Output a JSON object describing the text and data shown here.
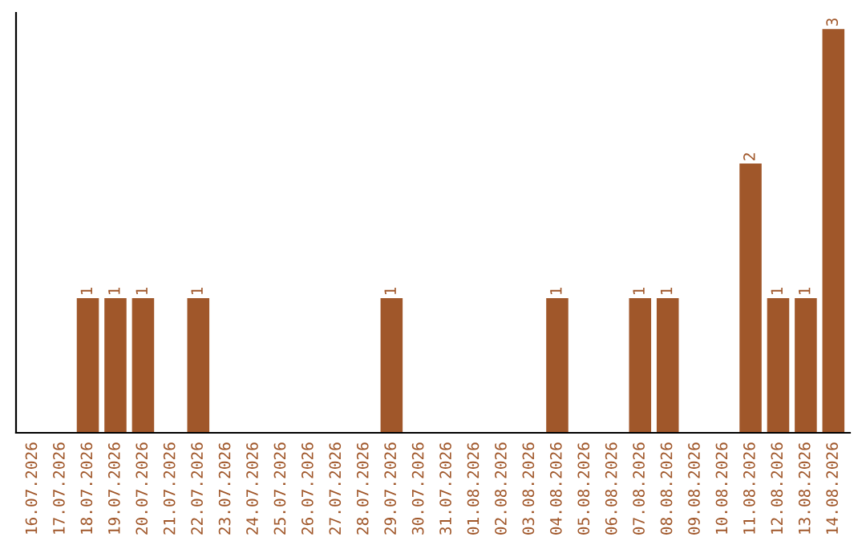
{
  "chart_data": {
    "type": "bar",
    "categories": [
      "16.07.2026",
      "17.07.2026",
      "18.07.2026",
      "19.07.2026",
      "20.07.2026",
      "21.07.2026",
      "22.07.2026",
      "23.07.2026",
      "24.07.2026",
      "25.07.2026",
      "26.07.2026",
      "27.07.2026",
      "28.07.2026",
      "29.07.2026",
      "30.07.2026",
      "31.07.2026",
      "01.08.2026",
      "02.08.2026",
      "03.08.2026",
      "04.08.2026",
      "05.08.2026",
      "06.08.2026",
      "07.08.2026",
      "08.08.2026",
      "09.08.2026",
      "10.08.2026",
      "11.08.2026",
      "12.08.2026",
      "13.08.2026",
      "14.08.2026"
    ],
    "values": [
      0,
      0,
      1,
      1,
      1,
      0,
      1,
      0,
      0,
      0,
      0,
      0,
      0,
      1,
      0,
      0,
      0,
      0,
      0,
      1,
      0,
      0,
      1,
      1,
      0,
      0,
      2,
      1,
      1,
      3
    ],
    "value_labels": [
      null,
      null,
      "1",
      "1",
      "1",
      null,
      "1",
      null,
      null,
      null,
      null,
      null,
      null,
      "1",
      null,
      null,
      null,
      null,
      null,
      "1",
      null,
      null,
      "1",
      "1",
      null,
      null,
      "2",
      "1",
      "1",
      "3"
    ],
    "color": "#a0572a",
    "grid": false,
    "legend": false
  }
}
